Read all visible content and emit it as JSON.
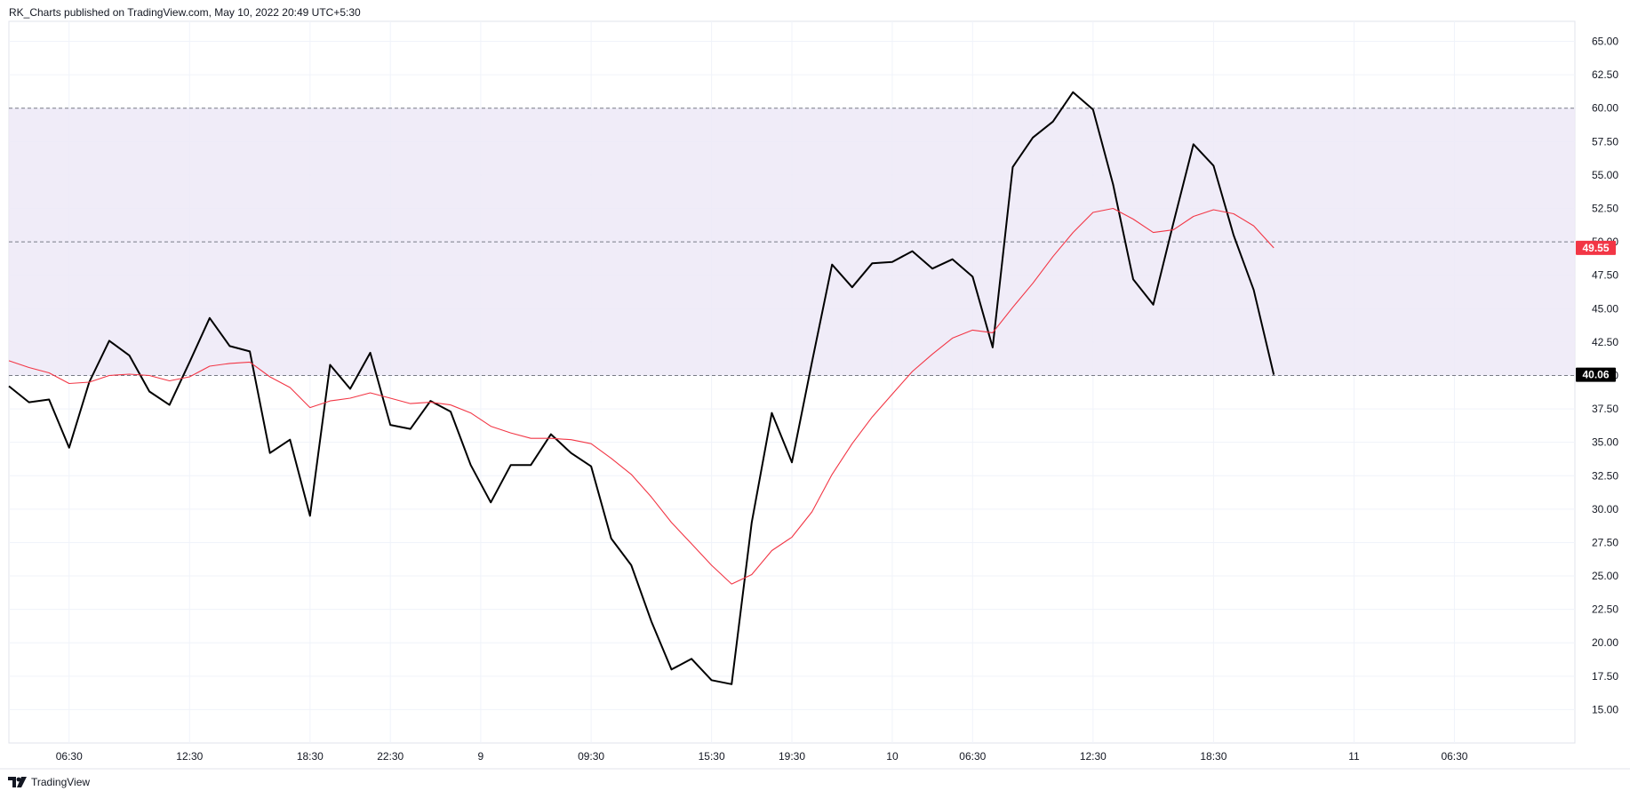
{
  "header": {
    "publisher_text": "RK_Charts published on TradingView.com, May 10, 2022 20:49 UTC+5:30"
  },
  "footer": {
    "brand_name": "TradingView",
    "logo_icon": "tradingview-logo-icon"
  },
  "colors": {
    "price_line": "#000000",
    "ma_line": "#f23645",
    "band_fill": "#ede9f7",
    "grid": "#f0f3fa",
    "level_line": "#787b86",
    "badge_ma": "#f23645",
    "badge_price": "#000000"
  },
  "chart_data": {
    "type": "line",
    "y_axis_position": "right",
    "ylim": [
      12.5,
      66.5
    ],
    "y_ticks": [
      "15.00",
      "17.50",
      "20.00",
      "22.50",
      "25.00",
      "27.50",
      "30.00",
      "32.50",
      "35.00",
      "37.50",
      "40.00",
      "42.50",
      "45.00",
      "47.50",
      "50.00",
      "52.50",
      "55.00",
      "57.50",
      "60.00",
      "62.50",
      "65.00"
    ],
    "x_tick_labels": [
      "06:30",
      "12:30",
      "18:30",
      "22:30",
      "9",
      "09:30",
      "15:30",
      "19:30",
      "10",
      "06:30",
      "12:30",
      "18:30",
      "11",
      "06:30"
    ],
    "x_tick_index": [
      3,
      9,
      15,
      19,
      23.5,
      29,
      35,
      39,
      44,
      48,
      54,
      60,
      67,
      72
    ],
    "x_range": [
      0,
      78
    ],
    "grid": true,
    "band": {
      "from": 40,
      "to": 60,
      "levels": [
        40,
        50,
        60
      ]
    },
    "series": [
      {
        "values": [
          39.2,
          38.0,
          38.2,
          34.6,
          39.5,
          42.6,
          41.5,
          38.8,
          37.8,
          41.0,
          44.3,
          42.2,
          41.8,
          34.2,
          35.2,
          29.5,
          40.8,
          39.0,
          41.7,
          36.3,
          36.0,
          38.1,
          37.3,
          33.3,
          30.5,
          33.3,
          33.3,
          35.6,
          34.2,
          33.2,
          27.8,
          25.8,
          21.6,
          18.0,
          18.8,
          17.2,
          16.9,
          29.0,
          37.2,
          33.5,
          41.0,
          48.3,
          46.6,
          48.4,
          48.5,
          49.3,
          48.0,
          48.7,
          47.4,
          42.1,
          55.6,
          57.8,
          59.0,
          61.2,
          59.9,
          54.3,
          47.2,
          45.3,
          51.4,
          57.3,
          55.7,
          50.5,
          46.4,
          40.06
        ]
      },
      {
        "values": [
          41.1,
          40.6,
          40.2,
          39.4,
          39.5,
          40.0,
          40.1,
          40.0,
          39.6,
          39.9,
          40.7,
          40.9,
          41.0,
          39.9,
          39.1,
          37.6,
          38.1,
          38.3,
          38.7,
          38.3,
          37.9,
          38.0,
          37.8,
          37.2,
          36.2,
          35.7,
          35.3,
          35.3,
          35.2,
          34.9,
          33.8,
          32.6,
          30.9,
          29.0,
          27.4,
          25.8,
          24.4,
          25.1,
          26.9,
          27.9,
          29.8,
          32.6,
          34.9,
          36.9,
          38.6,
          40.3,
          41.6,
          42.8,
          43.4,
          43.2,
          45.1,
          46.9,
          48.9,
          50.7,
          52.2,
          52.5,
          51.7,
          50.7,
          50.9,
          51.9,
          52.4,
          52.1,
          51.2,
          49.55
        ]
      }
    ],
    "badges": [
      {
        "label": "49.55",
        "value": 49.55
      },
      {
        "label": "40.06",
        "value": 40.06
      }
    ]
  }
}
